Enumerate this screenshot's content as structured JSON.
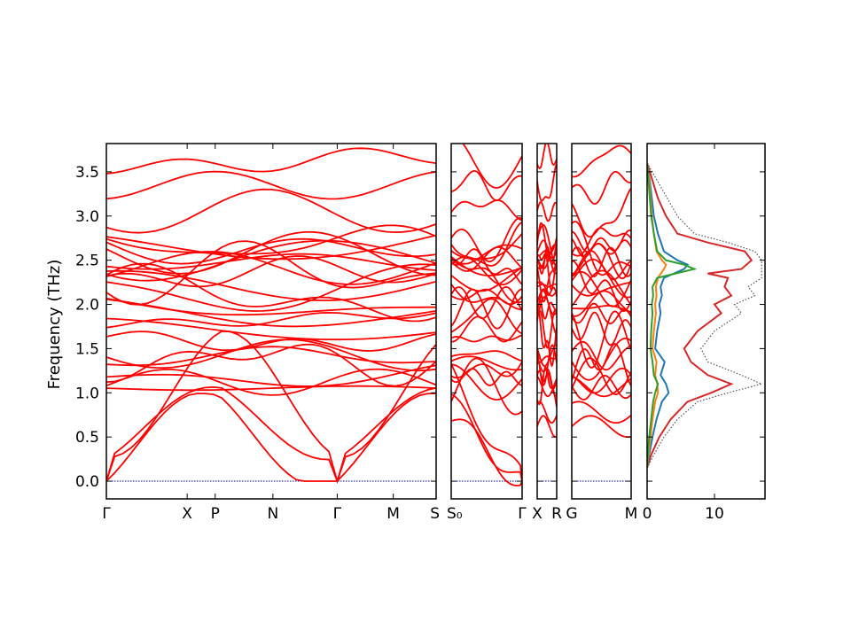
{
  "chart_data": [
    {
      "type": "line",
      "panel": "band-structure",
      "ylabel": "Frequency (THz)",
      "ylim": [
        -0.2,
        3.82
      ],
      "yticks": [
        "0.0",
        "0.5",
        "1.0",
        "1.5",
        "2.0",
        "2.5",
        "3.0",
        "3.5"
      ],
      "ytick_values": [
        0.0,
        0.5,
        1.0,
        1.5,
        2.0,
        2.5,
        3.0,
        3.5
      ],
      "segments": [
        {
          "labels": [
            "Γ",
            "X",
            "P",
            "N",
            "Γ",
            "M",
            "S"
          ],
          "label_pos": [
            0.0,
            0.245,
            0.33,
            0.505,
            0.7,
            0.87,
            1.0
          ]
        },
        {
          "labels": [
            "S₀",
            "Γ"
          ],
          "label_pos": [
            0.0,
            1.0
          ]
        },
        {
          "labels": [
            "X",
            "R"
          ],
          "label_pos": [
            0.0,
            1.0
          ]
        },
        {
          "labels": [
            "G",
            "M"
          ],
          "label_pos": [
            0.0,
            1.0
          ]
        }
      ],
      "band_color": "#ff0000",
      "zero_line_color": "#0000aa",
      "acoustic_top": [
        0.62,
        0.78,
        1.08
      ],
      "optical_levels": [
        1.05,
        1.12,
        1.18,
        1.33,
        1.38,
        1.42,
        1.62,
        1.72,
        1.85,
        1.95,
        2.02,
        2.1,
        2.18,
        2.22,
        2.3,
        2.38,
        2.42,
        2.48,
        2.52,
        2.58,
        2.63,
        2.68,
        2.72,
        3.05,
        3.35,
        3.62
      ]
    },
    {
      "type": "line",
      "panel": "phonon-dos",
      "orientation": "horizontal",
      "xlim": [
        0,
        17.5
      ],
      "xticks": [
        "0",
        "10"
      ],
      "xtick_values": [
        0,
        10
      ],
      "ylim": [
        -0.2,
        3.82
      ],
      "series": [
        {
          "color": "#555555",
          "style": "dotted",
          "y": [
            0.15,
            0.3,
            0.5,
            0.7,
            0.9,
            1.0,
            1.1,
            1.2,
            1.35,
            1.5,
            1.7,
            1.9,
            2.0,
            2.1,
            2.2,
            2.3,
            2.4,
            2.5,
            2.6,
            2.7,
            2.8,
            3.0,
            3.2,
            3.4,
            3.6
          ],
          "x": [
            0,
            1.0,
            2.5,
            4.5,
            7.5,
            12,
            17,
            14,
            9,
            8,
            10,
            14,
            13,
            16,
            15,
            17,
            17,
            17,
            16,
            12,
            7,
            4.5,
            3,
            1.5,
            0
          ]
        },
        {
          "color": "#d62728",
          "style": "solid",
          "y": [
            0.15,
            0.3,
            0.5,
            0.7,
            0.9,
            1.0,
            1.1,
            1.2,
            1.35,
            1.5,
            1.7,
            1.9,
            2.0,
            2.1,
            2.2,
            2.3,
            2.35,
            2.4,
            2.5,
            2.6,
            2.7,
            2.8,
            3.0,
            3.2,
            3.4,
            3.6
          ],
          "x": [
            0,
            0.6,
            1.8,
            3.5,
            6.0,
            9.5,
            12.5,
            9.0,
            6.5,
            5.5,
            7.5,
            11.0,
            10.0,
            12.5,
            11.5,
            12.0,
            9.0,
            14.0,
            15.5,
            14.5,
            9.0,
            4.5,
            2.8,
            1.6,
            0.8,
            0
          ]
        },
        {
          "color": "#1f77b4",
          "style": "solid",
          "y": [
            0.15,
            0.3,
            0.5,
            0.7,
            0.9,
            1.0,
            1.1,
            1.2,
            1.35,
            1.5,
            1.7,
            1.9,
            2.0,
            2.1,
            2.2,
            2.3,
            2.4,
            2.45,
            2.5,
            2.6,
            2.8,
            3.0,
            3.2,
            3.4,
            3.6
          ],
          "x": [
            0,
            0.3,
            0.8,
            1.4,
            2.2,
            3.2,
            2.8,
            2.0,
            2.6,
            1.2,
            1.5,
            2.0,
            1.8,
            2.2,
            2.0,
            2.5,
            5.5,
            6.0,
            4.5,
            2.5,
            1.6,
            1.0,
            0.7,
            0.4,
            0
          ]
        },
        {
          "color": "#ff7f0e",
          "style": "solid",
          "y": [
            0.15,
            0.3,
            0.5,
            0.7,
            0.9,
            1.0,
            1.1,
            1.2,
            1.35,
            1.5,
            1.7,
            1.9,
            2.0,
            2.1,
            2.2,
            2.3,
            2.4,
            2.45,
            2.5,
            2.6,
            2.8,
            3.0,
            3.2,
            3.4,
            3.6
          ],
          "x": [
            0,
            0.2,
            0.5,
            0.8,
            1.2,
            1.6,
            1.5,
            1.2,
            1.4,
            0.8,
            1.0,
            1.3,
            1.2,
            1.4,
            1.3,
            1.6,
            2.5,
            2.8,
            2.2,
            1.4,
            1.0,
            0.7,
            0.5,
            0.3,
            0
          ]
        },
        {
          "color": "#2ca02c",
          "style": "solid",
          "y": [
            0.15,
            0.3,
            0.5,
            0.7,
            0.9,
            1.0,
            1.1,
            1.2,
            1.35,
            1.5,
            1.7,
            1.9,
            2.0,
            2.1,
            2.2,
            2.3,
            2.4,
            2.45,
            2.5,
            2.6,
            2.8,
            3.0,
            3.2,
            3.4,
            3.6
          ],
          "x": [
            0,
            0.1,
            0.3,
            0.6,
            0.9,
            1.2,
            1.6,
            1.0,
            0.8,
            0.5,
            0.6,
            0.8,
            0.7,
            0.9,
            0.8,
            1.5,
            7.0,
            5.5,
            2.8,
            1.5,
            1.0,
            0.6,
            0.4,
            0.2,
            0
          ]
        }
      ]
    }
  ]
}
